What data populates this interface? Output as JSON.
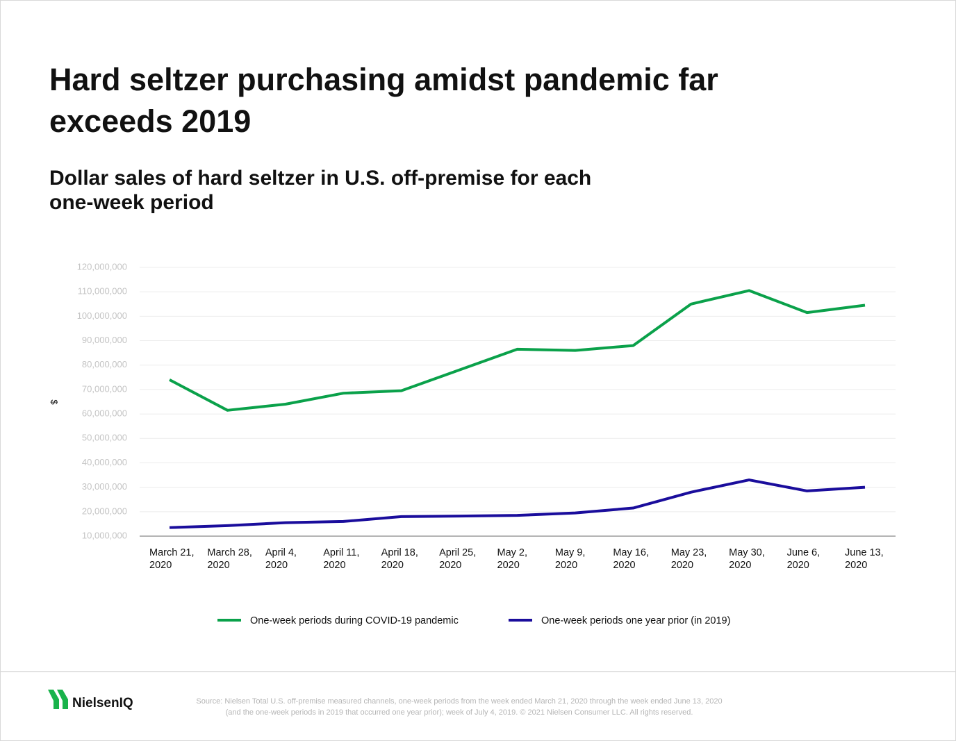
{
  "chart_data": {
    "type": "line",
    "title": [
      "Hard seltzer purchasing amidst pandemic far",
      "exceeds 2019"
    ],
    "subtitle": [
      "Dollar sales of hard seltzer in U.S. off-premise for each",
      "one-week period"
    ],
    "ylabel": "$",
    "categories": [
      "March 21, 2020",
      "March 28, 2020",
      "April 4, 2020",
      "April 11, 2020",
      "April 18, 2020",
      "April 25, 2020",
      "May 2, 2020",
      "May 9, 2020",
      "May 16, 2020",
      "May 23, 2020",
      "May 30, 2020",
      "June 6, 2020",
      "June 13, 2020"
    ],
    "series": [
      {
        "name": "One-week periods during COVID-19 pandemic",
        "color": "#0aa14a",
        "values": [
          74000000,
          61500000,
          64000000,
          68500000,
          69500000,
          78000000,
          86500000,
          86000000,
          88000000,
          105000000,
          110500000,
          101500000,
          104500000
        ]
      },
      {
        "name": "One-week periods one year prior (in 2019)",
        "color": "#1a0d9c",
        "values": [
          13500000,
          14300000,
          15500000,
          16000000,
          18000000,
          18200000,
          18500000,
          19500000,
          21500000,
          28000000,
          33000000,
          28500000,
          30000000
        ]
      }
    ],
    "ylim": [
      10000000,
      120000000
    ],
    "yticks": [
      {
        "value": 10000000,
        "label": "10,000,000"
      },
      {
        "value": 20000000,
        "label": "20,000,000"
      },
      {
        "value": 30000000,
        "label": "30,000,000"
      },
      {
        "value": 40000000,
        "label": "40,000,000"
      },
      {
        "value": 50000000,
        "label": "50,000,000"
      },
      {
        "value": 60000000,
        "label": "60,000,000"
      },
      {
        "value": 70000000,
        "label": "70,000,000"
      },
      {
        "value": 80000000,
        "label": "80,000,000"
      },
      {
        "value": 90000000,
        "label": "90,000,000"
      },
      {
        "value": 100000000,
        "label": "100,000,000"
      },
      {
        "value": 110000000,
        "label": "110,000,000"
      },
      {
        "value": 120000000,
        "label": "120,000,000"
      }
    ],
    "grid": true,
    "legend": "bottom"
  },
  "footer": {
    "logo": "NielsenIQ",
    "source": [
      "Source: Nielsen Total U.S. off-premise measured channels, one-week periods from the week ended March 21, 2020 through the week ended June 13, 2020",
      "(and the one-week periods in 2019 that occurred one year prior); week of July 4, 2019. © 2021 Nielsen Consumer LLC. All rights reserved."
    ]
  }
}
